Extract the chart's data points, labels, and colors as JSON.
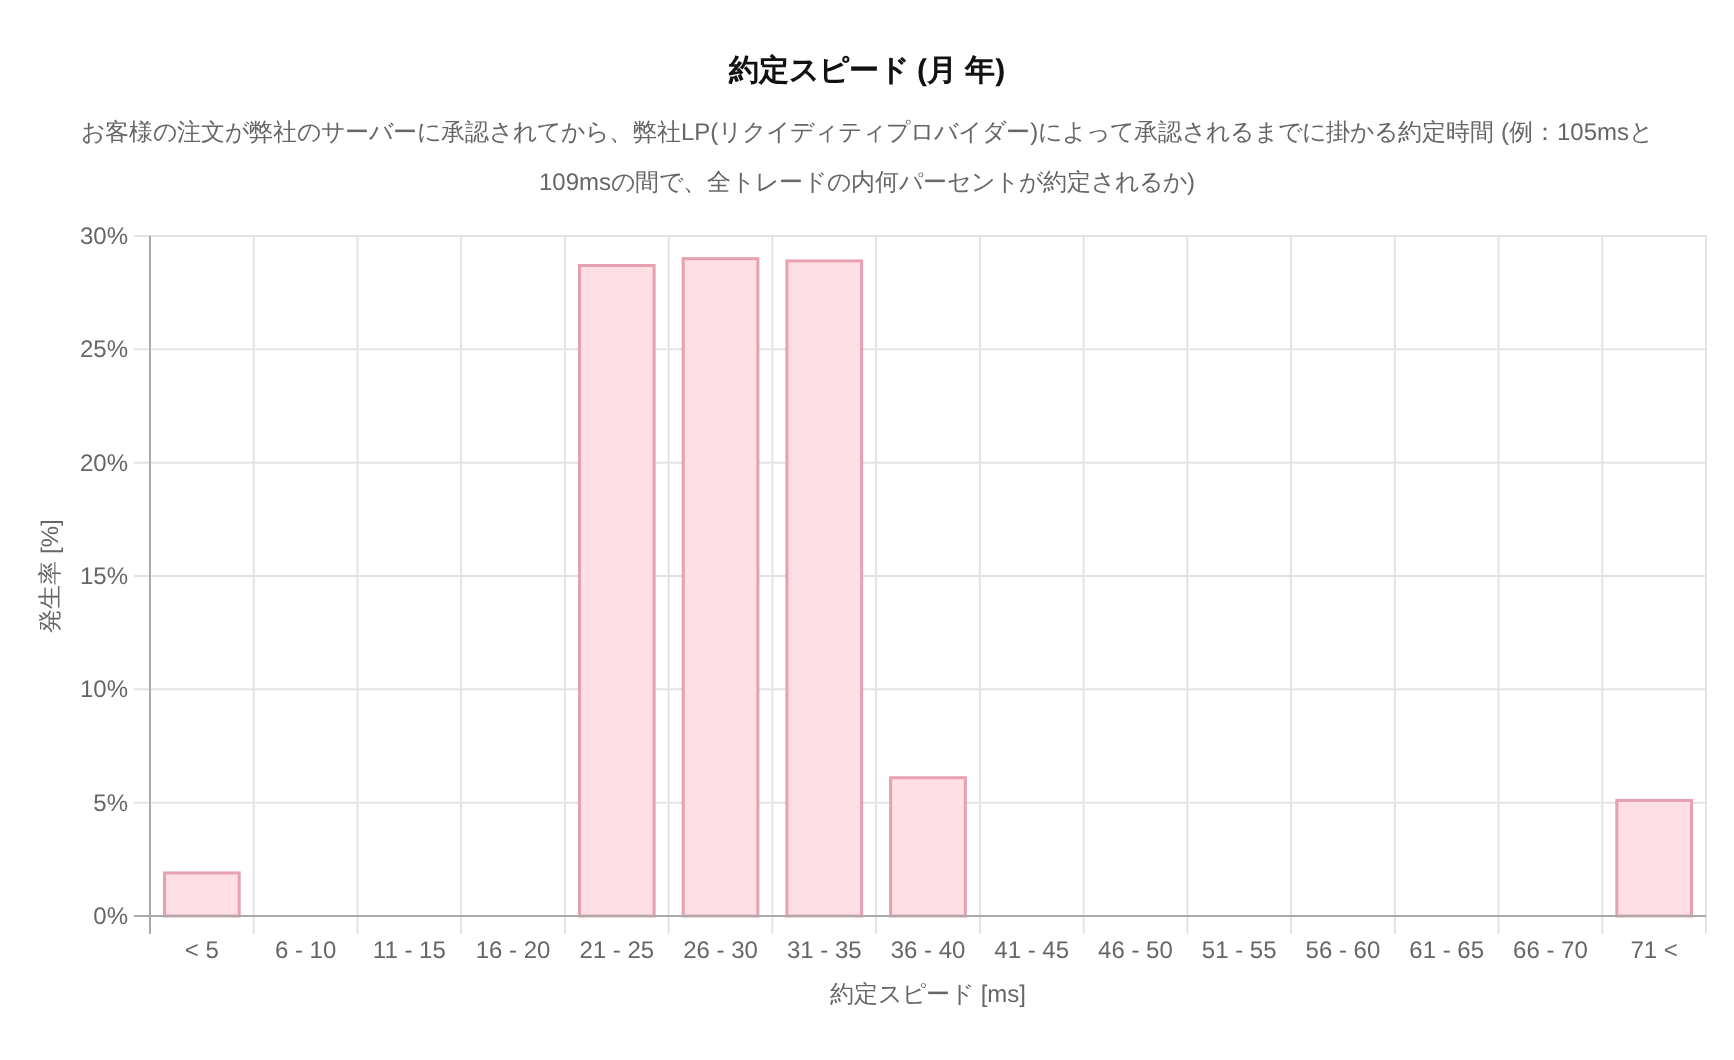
{
  "chart_data": {
    "type": "bar",
    "title": "約定スピード (月 年)",
    "subtitle": "お客様の注文が弊社のサーバーに承認されてから、弊社LP(リクイディティプロバイダー)によって承認されるまでに掛かる約定時間 (例：105msと109msの間で、全トレードの内何パーセントが約定されるか)",
    "xlabel": "約定スピード [ms]",
    "ylabel": "発生率 [%]",
    "categories": [
      "< 5",
      "6 - 10",
      "11 - 15",
      "16 - 20",
      "21 - 25",
      "26 - 30",
      "31 - 35",
      "36 - 40",
      "41 - 45",
      "46 - 50",
      "51 - 55",
      "56 - 60",
      "61 - 65",
      "66 - 70",
      "71 <"
    ],
    "values": [
      1.9,
      0,
      0,
      0,
      28.7,
      29.0,
      28.9,
      6.1,
      0,
      0,
      0,
      0,
      0,
      0,
      5.1
    ],
    "color": "#ffdfe6",
    "ylim": [
      0,
      30
    ],
    "yticks": [
      {
        "value": 0,
        "label": "0%"
      },
      {
        "value": 5,
        "label": "5%"
      },
      {
        "value": 10,
        "label": "10%"
      },
      {
        "value": 15,
        "label": "15%"
      },
      {
        "value": 20,
        "label": "20%"
      },
      {
        "value": 25,
        "label": "25%"
      },
      {
        "value": 30,
        "label": "30%"
      }
    ],
    "grid": true
  }
}
